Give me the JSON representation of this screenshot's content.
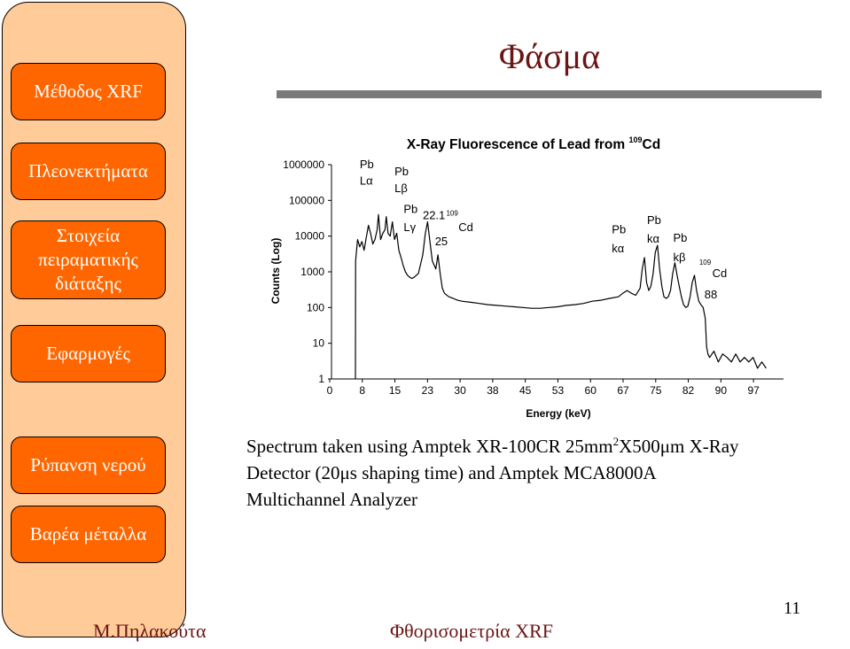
{
  "sidebar": {
    "items": [
      {
        "label": "Μέθοδος XRF"
      },
      {
        "label": "Πλεονεκτήματα"
      },
      {
        "label": "Στοιχεία\nπειραματικής\nδιάταξης"
      },
      {
        "label": "Εφαρμογές"
      },
      {
        "label": "Ρύπανση νερού"
      },
      {
        "label": "Βαρέα μέταλλα"
      }
    ]
  },
  "slide": {
    "title": "Φάσμα",
    "caption": {
      "part1": "Spectrum taken using Amptek XR-100CR 25mm",
      "sup": "2",
      "part2": "X500μm X-Ray",
      "line2": "Detector (20μs shaping time) and Amptek MCA8000A",
      "line3": "Multichannel Analyzer"
    },
    "footer_left": "Μ.Πηλακούτα",
    "footer_center": "Φθορισομετρία XRF",
    "page_number": "11"
  },
  "chart_data": {
    "type": "line",
    "title": "X-Ray Fluorescence of Lead from ",
    "title_sup": "109",
    "title_tail": "Cd",
    "xlabel": "Energy (keV)",
    "ylabel": "Counts (Log)",
    "x_ticks": [
      "0",
      "8",
      "15",
      "23",
      "30",
      "38",
      "45",
      "53",
      "60",
      "67",
      "75",
      "82",
      "90",
      "97"
    ],
    "y_ticks": [
      "1",
      "10",
      "100",
      "1000",
      "10000",
      "100000",
      "1000000"
    ],
    "xlim": [
      0,
      104
    ],
    "ylim": [
      1,
      1000000
    ],
    "log_y": true,
    "annotations": [
      {
        "text": "Pb",
        "x": 6.5,
        "y": 800000
      },
      {
        "text": "Lα",
        "x": 6.5,
        "y": 280000
      },
      {
        "text": "Pb",
        "x": 14.5,
        "y": 500000
      },
      {
        "text": "Lβ",
        "x": 14.5,
        "y": 170000
      },
      {
        "text": "Pb",
        "x": 16.6,
        "y": 45000
      },
      {
        "text": "Lγ",
        "x": 16.6,
        "y": 14000
      },
      {
        "text": "22.1",
        "x": 21.0,
        "y": 30000
      },
      {
        "text": "109",
        "x": 26.4,
        "y": 37000
      },
      {
        "text": "Cd",
        "x": 29.2,
        "y": 14000
      },
      {
        "text": "25",
        "x": 23.8,
        "y": 5500
      },
      {
        "text": "Pb",
        "x": 64.5,
        "y": 12000
      },
      {
        "text": "kα",
        "x": 64.5,
        "y": 3500
      },
      {
        "text": "Pb",
        "x": 72.6,
        "y": 22000
      },
      {
        "text": "kα",
        "x": 72.6,
        "y": 6500
      },
      {
        "text": "Pb",
        "x": 78.6,
        "y": 7000
      },
      {
        "text": "kβ",
        "x": 78.6,
        "y": 2000
      },
      {
        "text": "109",
        "x": 84.6,
        "y": 1600
      },
      {
        "text": "Cd",
        "x": 87.6,
        "y": 700
      },
      {
        "text": "88",
        "x": 85.8,
        "y": 180
      }
    ],
    "series": [
      {
        "name": "Counts",
        "x": [
          5.5,
          5.55,
          6,
          6.5,
          7,
          7.5,
          8,
          8.5,
          9,
          9.5,
          10,
          10.5,
          10.8,
          11.3,
          11.8,
          12.3,
          12.6,
          13,
          13.5,
          14,
          14.5,
          15,
          15.5,
          16,
          16.5,
          17,
          17.5,
          18,
          18.5,
          19,
          20,
          21,
          21.6,
          22.1,
          22.6,
          23.2,
          24,
          24.5,
          25,
          25.5,
          26,
          27,
          28,
          29,
          30,
          32,
          34,
          36,
          38,
          40,
          42,
          44,
          46,
          48,
          50,
          52,
          54,
          56,
          58,
          60,
          62,
          64,
          66,
          67,
          68,
          69,
          70,
          71,
          71.5,
          72,
          72.5,
          73,
          73.5,
          74,
          74.5,
          75,
          75.5,
          76,
          76.5,
          77,
          77.5,
          78,
          78.5,
          79,
          79.5,
          80,
          80.5,
          81,
          81.5,
          82,
          82.5,
          83,
          83.5,
          84,
          84.5,
          85,
          85.5,
          86,
          86.3,
          86.6,
          87,
          88,
          89,
          90,
          91,
          92,
          93,
          94,
          95,
          96,
          97,
          98,
          99,
          100
        ],
        "y": [
          1,
          2000,
          8000,
          5000,
          7000,
          4000,
          9000,
          20000,
          12000,
          6000,
          8000,
          15000,
          40000,
          8000,
          12000,
          15000,
          35000,
          12000,
          10000,
          25000,
          8000,
          12000,
          4000,
          2500,
          1500,
          1000,
          800,
          700,
          650,
          700,
          900,
          3000,
          12000,
          25000,
          8000,
          2000,
          1200,
          3000,
          900,
          350,
          250,
          200,
          180,
          160,
          150,
          140,
          130,
          120,
          115,
          110,
          105,
          100,
          95,
          95,
          100,
          105,
          115,
          120,
          130,
          150,
          160,
          180,
          200,
          250,
          300,
          250,
          220,
          350,
          1200,
          2500,
          500,
          300,
          400,
          900,
          3500,
          5500,
          1200,
          400,
          200,
          180,
          200,
          300,
          900,
          1800,
          800,
          400,
          200,
          120,
          100,
          110,
          200,
          500,
          800,
          300,
          150,
          120,
          100,
          50,
          8,
          5,
          4,
          6,
          3,
          5,
          4,
          3,
          5,
          3,
          4,
          3,
          4,
          2,
          3,
          2
        ]
      }
    ]
  }
}
